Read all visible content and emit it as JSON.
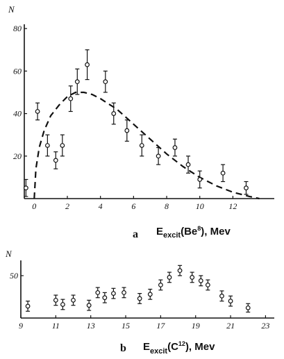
{
  "chart_data": [
    {
      "panel": "a",
      "type": "scatter",
      "ylabel": "N",
      "xlabel_main": "E",
      "xlabel_sub": "excit",
      "xlabel_mid1": "(Be",
      "xlabel_sup": "8",
      "xlabel_mid2": "), Mev",
      "xlim": [
        -0.6,
        14.5
      ],
      "ylim": [
        0,
        82
      ],
      "x_ticks": [
        0,
        2,
        4,
        6,
        8,
        10,
        12
      ],
      "y_ticks": [
        20,
        40,
        60,
        80
      ],
      "series": [
        {
          "kind": "points_with_error",
          "points": [
            {
              "x": -0.5,
              "y": 5,
              "err": 4
            },
            {
              "x": 0.2,
              "y": 41,
              "err": 4
            },
            {
              "x": 0.8,
              "y": 25,
              "err": 5
            },
            {
              "x": 1.3,
              "y": 18,
              "err": 4
            },
            {
              "x": 1.7,
              "y": 25,
              "err": 5
            },
            {
              "x": 2.2,
              "y": 47,
              "err": 6
            },
            {
              "x": 2.6,
              "y": 55,
              "err": 6
            },
            {
              "x": 3.2,
              "y": 63,
              "err": 7
            },
            {
              "x": 4.3,
              "y": 55,
              "err": 5
            },
            {
              "x": 4.8,
              "y": 40,
              "err": 5
            },
            {
              "x": 5.6,
              "y": 32,
              "err": 5
            },
            {
              "x": 6.5,
              "y": 25,
              "err": 5
            },
            {
              "x": 7.5,
              "y": 20,
              "err": 4
            },
            {
              "x": 8.5,
              "y": 24,
              "err": 4
            },
            {
              "x": 9.3,
              "y": 16,
              "err": 4
            },
            {
              "x": 10.0,
              "y": 9,
              "err": 4
            },
            {
              "x": 11.4,
              "y": 12,
              "err": 4
            },
            {
              "x": 12.8,
              "y": 5,
              "err": 3
            }
          ]
        },
        {
          "kind": "dashed_curve",
          "points": [
            {
              "x": 0.0,
              "y": 0
            },
            {
              "x": 0.1,
              "y": 14
            },
            {
              "x": 0.3,
              "y": 24
            },
            {
              "x": 0.6,
              "y": 32
            },
            {
              "x": 1.0,
              "y": 39
            },
            {
              "x": 1.5,
              "y": 44
            },
            {
              "x": 2.0,
              "y": 48
            },
            {
              "x": 2.5,
              "y": 50
            },
            {
              "x": 3.0,
              "y": 50
            },
            {
              "x": 3.5,
              "y": 49
            },
            {
              "x": 4.0,
              "y": 47
            },
            {
              "x": 5.0,
              "y": 42
            },
            {
              "x": 6.0,
              "y": 35
            },
            {
              "x": 7.0,
              "y": 28
            },
            {
              "x": 8.0,
              "y": 21
            },
            {
              "x": 9.0,
              "y": 15
            },
            {
              "x": 10.0,
              "y": 10
            },
            {
              "x": 11.0,
              "y": 6
            },
            {
              "x": 12.0,
              "y": 3
            },
            {
              "x": 13.0,
              "y": 1
            },
            {
              "x": 13.6,
              "y": 0
            }
          ]
        }
      ]
    },
    {
      "panel": "b",
      "type": "scatter",
      "ylabel": "N",
      "xlabel_main": "E",
      "xlabel_sub": "excit",
      "xlabel_mid1": "(C",
      "xlabel_sup": "12",
      "xlabel_mid2": "), Mev",
      "xlim": [
        9,
        23.5
      ],
      "ylim": [
        0,
        68
      ],
      "x_ticks": [
        9,
        11,
        13,
        15,
        17,
        19,
        21,
        23
      ],
      "y_ticks": [
        50
      ],
      "series": [
        {
          "kind": "points_with_error",
          "points": [
            {
              "x": 9.4,
              "y": 14,
              "err": 6
            },
            {
              "x": 11.0,
              "y": 21,
              "err": 6
            },
            {
              "x": 11.4,
              "y": 16,
              "err": 6
            },
            {
              "x": 12.0,
              "y": 21,
              "err": 6
            },
            {
              "x": 12.9,
              "y": 15,
              "err": 6
            },
            {
              "x": 13.4,
              "y": 30,
              "err": 6
            },
            {
              "x": 13.8,
              "y": 24,
              "err": 6
            },
            {
              "x": 14.3,
              "y": 29,
              "err": 6
            },
            {
              "x": 14.9,
              "y": 30,
              "err": 6
            },
            {
              "x": 15.8,
              "y": 23,
              "err": 6
            },
            {
              "x": 16.4,
              "y": 28,
              "err": 6
            },
            {
              "x": 17.0,
              "y": 39,
              "err": 6
            },
            {
              "x": 17.5,
              "y": 48,
              "err": 6
            },
            {
              "x": 18.1,
              "y": 56,
              "err": 6
            },
            {
              "x": 18.8,
              "y": 48,
              "err": 6
            },
            {
              "x": 19.3,
              "y": 44,
              "err": 6
            },
            {
              "x": 19.7,
              "y": 39,
              "err": 6
            },
            {
              "x": 20.5,
              "y": 26,
              "err": 6
            },
            {
              "x": 21.0,
              "y": 20,
              "err": 6
            },
            {
              "x": 22.0,
              "y": 12,
              "err": 5
            }
          ]
        }
      ]
    }
  ]
}
